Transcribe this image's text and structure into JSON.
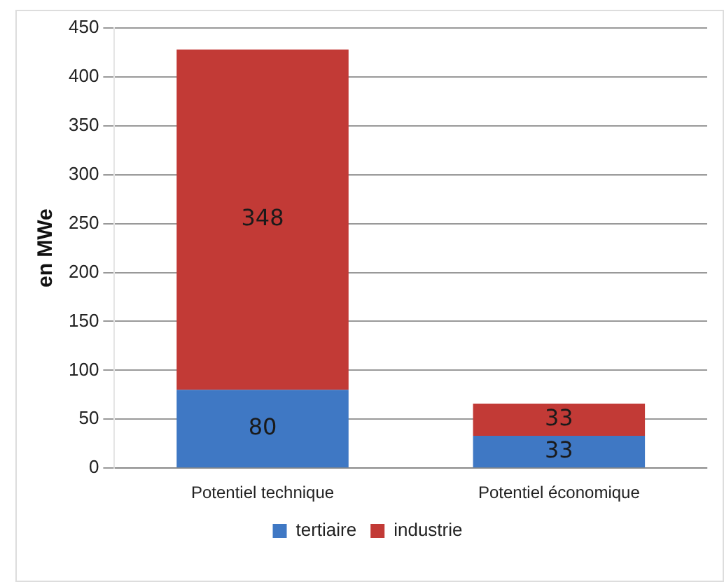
{
  "chart_data": {
    "type": "bar",
    "ylabel": "en MWe",
    "categories": [
      "Potentiel technique",
      "Potentiel économique"
    ],
    "series": [
      {
        "name": "tertiaire",
        "color": "#3f78c4",
        "values": [
          80,
          33
        ]
      },
      {
        "name": "industrie",
        "color": "#c23a36",
        "values": [
          348,
          33
        ]
      }
    ],
    "stacked": true,
    "ylim": [
      0,
      450
    ],
    "yticks": [
      0,
      50,
      100,
      150,
      200,
      250,
      300,
      350,
      400,
      450
    ],
    "grid": "y",
    "legend": "bottom",
    "data_labels": true
  }
}
